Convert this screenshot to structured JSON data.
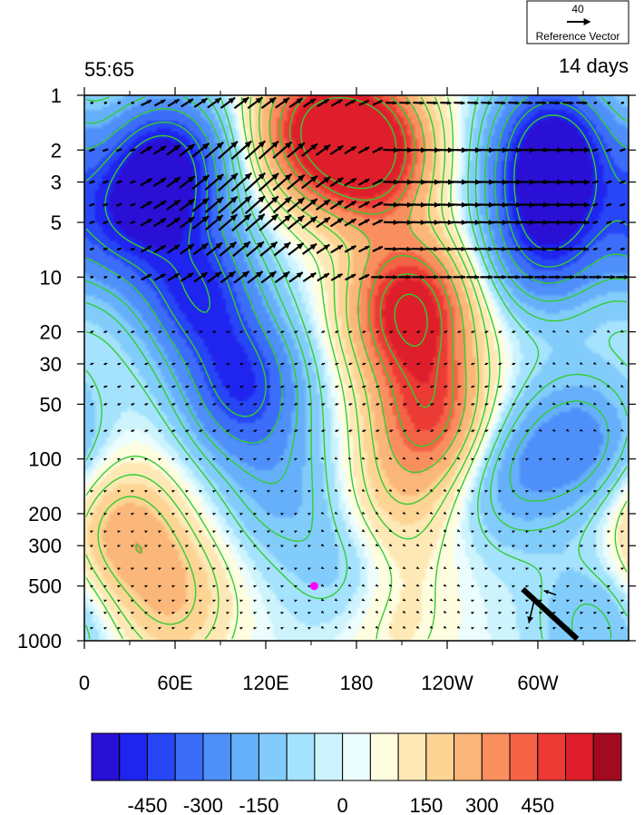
{
  "chart_data": {
    "type": "heatmap",
    "left_title": "55:65",
    "right_title": "14 days",
    "x_tick_labels": [
      "0",
      "60E",
      "120E",
      "180",
      "120W",
      "60W"
    ],
    "x_tick_values_deg_east": [
      0,
      60,
      120,
      180,
      240,
      300
    ],
    "x_range_deg_east": [
      0,
      360
    ],
    "y_tick_labels": [
      "1",
      "2",
      "3",
      "5",
      "10",
      "20",
      "30",
      "50",
      "100",
      "200",
      "300",
      "500",
      "1000"
    ],
    "y_tick_values": [
      1,
      2,
      3,
      5,
      10,
      20,
      30,
      50,
      100,
      200,
      300,
      500,
      1000
    ],
    "y_range": [
      1,
      1000
    ],
    "y_scale": "log-reversed",
    "colorbar": {
      "labels": [
        "-450",
        "-300",
        "-150",
        "0",
        "150",
        "300",
        "450"
      ],
      "label_values": [
        -450,
        -300,
        -150,
        0,
        150,
        300,
        450
      ],
      "levels": [
        -525,
        -450,
        -375,
        -300,
        -225,
        -150,
        -75,
        -25,
        0,
        25,
        75,
        150,
        225,
        300,
        375,
        450,
        525
      ],
      "colors": [
        "#2a0fd4",
        "#1f24ee",
        "#2746f6",
        "#3c6df9",
        "#4f8ff9",
        "#66b0fb",
        "#82ccfc",
        "#a4e2fd",
        "#cdf4fd",
        "#ecfdfd",
        "#fffde0",
        "#fee9b6",
        "#fdd494",
        "#fbb779",
        "#f98f5f",
        "#f56346",
        "#ec3a35",
        "#de1f2b",
        "#a20a20"
      ]
    },
    "shading_anomalies": [
      {
        "lon": 55,
        "p": 2.5,
        "value": -560
      },
      {
        "lon": 75,
        "p": 12,
        "value": -430
      },
      {
        "lon": 105,
        "p": 40,
        "value": -420
      },
      {
        "lon": 20,
        "p": 5,
        "value": -330
      },
      {
        "lon": 310,
        "p": 2,
        "value": -600
      },
      {
        "lon": 305,
        "p": 6,
        "value": -420
      },
      {
        "lon": 190,
        "p": 2,
        "value": 640
      },
      {
        "lon": 215,
        "p": 15,
        "value": 600
      },
      {
        "lon": 230,
        "p": 60,
        "value": 430
      },
      {
        "lon": 150,
        "p": 1.5,
        "value": 470
      },
      {
        "lon": 25,
        "p": 250,
        "value": 260
      },
      {
        "lon": 60,
        "p": 600,
        "value": 200
      },
      {
        "lon": 200,
        "p": 200,
        "value": 170
      },
      {
        "lon": 200,
        "p": 700,
        "value": 130
      },
      {
        "lon": 280,
        "p": 120,
        "value": -200
      },
      {
        "lon": 180,
        "p": 400,
        "value": -170
      },
      {
        "lon": 130,
        "p": 150,
        "value": -150
      },
      {
        "lon": 340,
        "p": 800,
        "value": -150
      },
      {
        "lon": 330,
        "p": 80,
        "value": -250
      }
    ],
    "contour_color": "#33cc33",
    "contour_style": "solid positive, dashed negative",
    "vectors": {
      "color": "#000000",
      "reference_magnitude": "40",
      "reference_label": "Reference Vector",
      "wave_train": [
        {
          "p": 1.1,
          "lon_center": 110,
          "strength": 0.5
        },
        {
          "p": 2,
          "lon_center": 110,
          "strength": 1.0
        },
        {
          "p": 3,
          "lon_center": 110,
          "strength": 1.0
        },
        {
          "p": 4,
          "lon_center": 110,
          "strength": 0.95
        },
        {
          "p": 5,
          "lon_center": 110,
          "strength": 0.9
        },
        {
          "p": 7,
          "lon_center": 110,
          "strength": 0.75
        },
        {
          "p": 10,
          "lon_center": 110,
          "strength": 0.55
        }
      ],
      "surface_large_vector": {
        "lon_from": 290,
        "lon_to": 326,
        "p_from": 520,
        "p_to": 1000
      }
    },
    "marker": {
      "lon": 152,
      "p": 500,
      "color": "#ff00ff"
    }
  }
}
